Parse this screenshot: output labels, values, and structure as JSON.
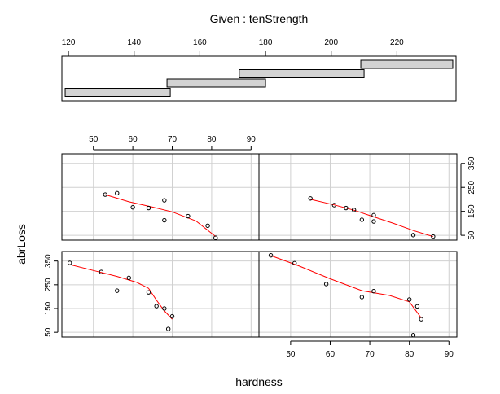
{
  "chart_data": {
    "type": "coplot",
    "given": {
      "title": "Given : tenStrength",
      "ticks": [
        120,
        140,
        160,
        180,
        200,
        220
      ],
      "range": [
        118,
        238
      ],
      "intervals": [
        [
          119,
          151
        ],
        [
          150,
          180
        ],
        [
          172,
          210
        ],
        [
          209,
          237
        ]
      ]
    },
    "xlabel": "hardness",
    "ylabel": "abrLoss",
    "xticks": [
      50,
      60,
      70,
      80,
      90
    ],
    "yticks": [
      50,
      150,
      250,
      350
    ],
    "xlim": [
      42,
      92
    ],
    "ylim": [
      30,
      390
    ],
    "grid": true,
    "smoother_color": "#ff0000",
    "panels": [
      {
        "interval": 1,
        "points": [
          [
            44,
            342
          ],
          [
            52,
            304
          ],
          [
            56,
            225
          ],
          [
            59,
            279
          ],
          [
            64,
            218
          ],
          [
            66,
            160
          ],
          [
            68,
            150
          ],
          [
            69,
            64
          ],
          [
            70,
            117
          ]
        ],
        "smooth": [
          [
            44,
            335
          ],
          [
            50,
            310
          ],
          [
            56,
            285
          ],
          [
            61,
            260
          ],
          [
            64,
            235
          ],
          [
            66,
            185
          ],
          [
            68,
            140
          ],
          [
            70,
            105
          ]
        ]
      },
      {
        "interval": 2,
        "points": [
          [
            45,
            374
          ],
          [
            51,
            341
          ],
          [
            59,
            253
          ],
          [
            68,
            198
          ],
          [
            71,
            223
          ],
          [
            80,
            188
          ],
          [
            82,
            159
          ],
          [
            83,
            105
          ],
          [
            81,
            38
          ]
        ],
        "smooth": [
          [
            45,
            373
          ],
          [
            52,
            330
          ],
          [
            60,
            275
          ],
          [
            68,
            225
          ],
          [
            75,
            205
          ],
          [
            80,
            178
          ],
          [
            83,
            110
          ]
        ]
      },
      {
        "interval": 3,
        "points": [
          [
            53,
            220
          ],
          [
            56,
            226
          ],
          [
            60,
            167
          ],
          [
            64,
            164
          ],
          [
            68,
            196
          ],
          [
            68,
            113
          ],
          [
            74,
            130
          ],
          [
            79,
            90
          ],
          [
            81,
            40
          ]
        ],
        "smooth": [
          [
            53,
            220
          ],
          [
            59,
            190
          ],
          [
            65,
            168
          ],
          [
            70,
            148
          ],
          [
            76,
            110
          ],
          [
            81,
            45
          ]
        ]
      },
      {
        "interval": 4,
        "points": [
          [
            55,
            204
          ],
          [
            61,
            176
          ],
          [
            64,
            164
          ],
          [
            66,
            156
          ],
          [
            68,
            115
          ],
          [
            71,
            134
          ],
          [
            71,
            108
          ],
          [
            81,
            51
          ],
          [
            86,
            45
          ]
        ],
        "smooth": [
          [
            55,
            200
          ],
          [
            61,
            177
          ],
          [
            66,
            155
          ],
          [
            71,
            127
          ],
          [
            76,
            100
          ],
          [
            81,
            70
          ],
          [
            86,
            45
          ]
        ]
      }
    ]
  }
}
